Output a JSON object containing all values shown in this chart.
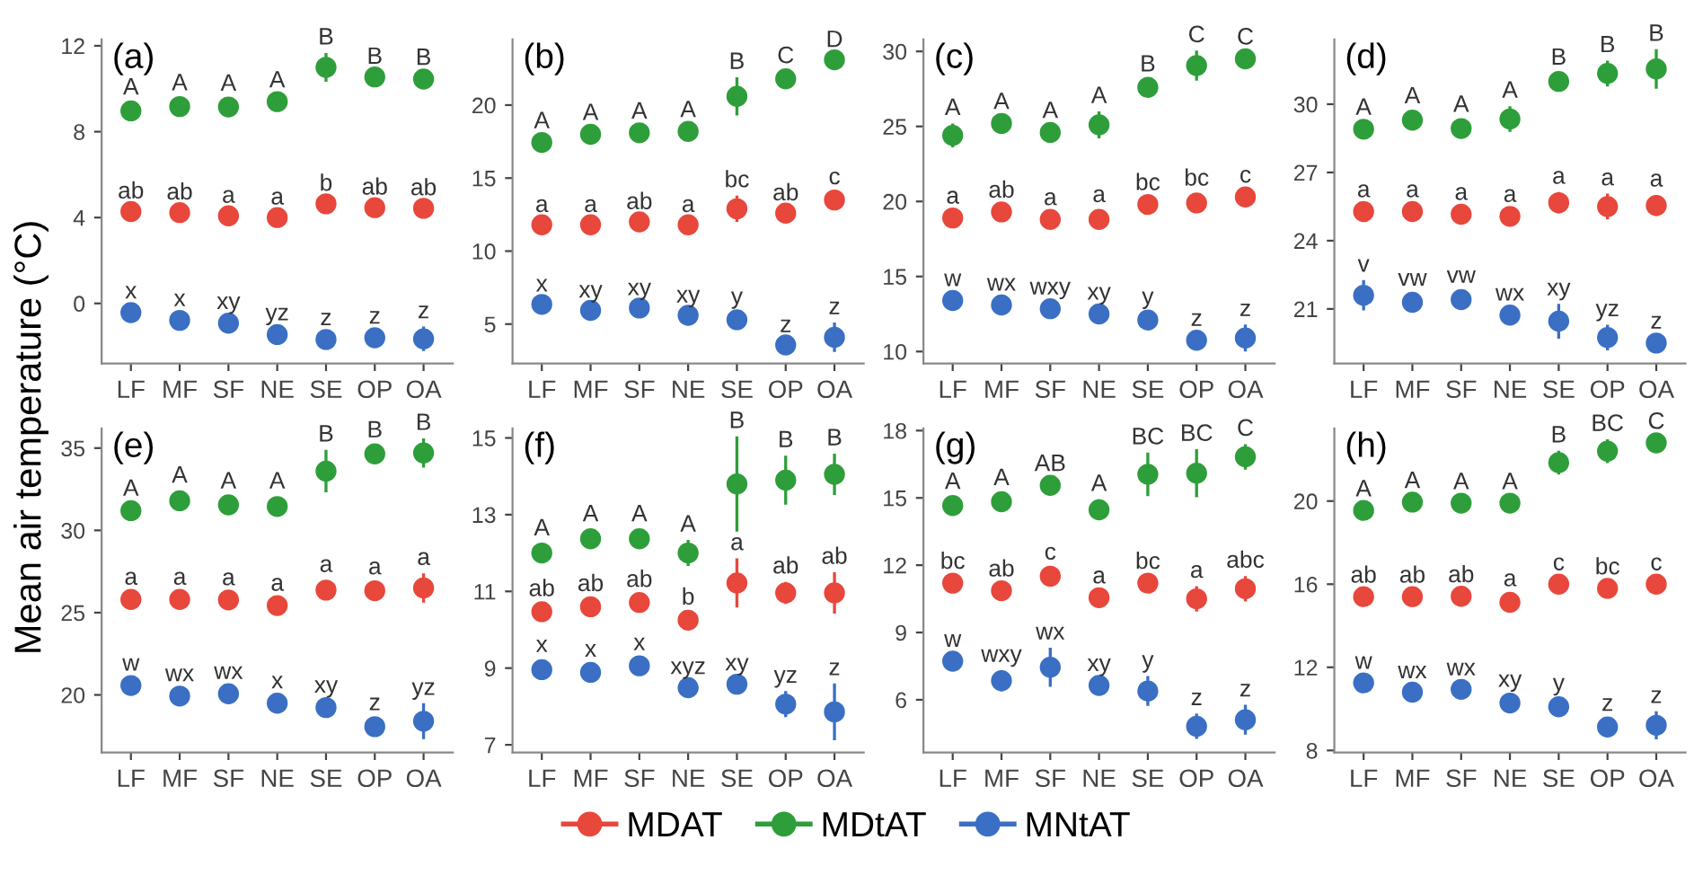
{
  "chart_data": [
    {
      "type": "scatter",
      "title": "(a)",
      "ylabel": "Mean air temperature (°C)",
      "legend": "bottom",
      "marker": "circle",
      "grid": false,
      "categories": [
        "LF",
        "MF",
        "SF",
        "NE",
        "SE",
        "OP",
        "OA"
      ],
      "ylim": [
        -2.8,
        12.3
      ],
      "yticks": [
        0,
        4,
        8,
        12
      ],
      "series": [
        {
          "name": "MDAT",
          "color": "#e8473c",
          "values": [
            4.28,
            4.23,
            4.08,
            4.0,
            4.64,
            4.46,
            4.43
          ],
          "errors": [
            0.15,
            0.15,
            0.15,
            0.15,
            0.15,
            0.15,
            0.15
          ],
          "value_labels": [
            "ab",
            "ab",
            "a",
            "a",
            "b",
            "ab",
            "ab"
          ]
        },
        {
          "name": "MDtAT",
          "color": "#2e9e3a",
          "values": [
            8.97,
            9.17,
            9.15,
            9.4,
            11.0,
            10.55,
            10.45
          ],
          "errors": [
            0.3,
            0.3,
            0.3,
            0.2,
            0.6,
            0.15,
            0.2
          ],
          "value_labels": [
            "A",
            "A",
            "A",
            "A",
            "B",
            "B",
            "B"
          ]
        },
        {
          "name": "MNtAT",
          "color": "#3a6fc4",
          "values": [
            -0.43,
            -0.79,
            -0.92,
            -1.45,
            -1.68,
            -1.6,
            -1.65
          ],
          "errors": [
            0.2,
            0.2,
            0.2,
            0.2,
            0.2,
            0.2,
            0.5
          ],
          "value_labels": [
            "x",
            "x",
            "xy",
            "yz",
            "z",
            "z",
            "z"
          ]
        }
      ]
    },
    {
      "type": "scatter",
      "title": "(b)",
      "marker": "circle",
      "grid": false,
      "categories": [
        "LF",
        "MF",
        "SF",
        "NE",
        "SE",
        "OP",
        "OA"
      ],
      "ylim": [
        2.3,
        24.5
      ],
      "yticks": [
        5,
        10,
        15,
        20
      ],
      "series": [
        {
          "color": "#e8473c",
          "values": [
            11.8,
            11.8,
            12.0,
            11.8,
            12.9,
            12.6,
            13.5
          ],
          "errors": [
            0.2,
            0.2,
            0.2,
            0.2,
            0.8,
            0.2,
            0.4
          ],
          "value_labels": [
            "a",
            "a",
            "ab",
            "a",
            "bc",
            "ab",
            "c"
          ]
        },
        {
          "color": "#2e9e3a",
          "values": [
            17.44,
            18.0,
            18.1,
            18.2,
            20.6,
            21.8,
            23.1
          ],
          "errors": [
            0.3,
            0.3,
            0.3,
            0.3,
            1.2,
            0.4,
            0.2
          ],
          "value_labels": [
            "A",
            "A",
            "A",
            "A",
            "B",
            "C",
            "D"
          ]
        },
        {
          "color": "#3a6fc4",
          "values": [
            6.35,
            5.94,
            6.1,
            5.6,
            5.3,
            3.57,
            4.1
          ],
          "errors": [
            0.2,
            0.2,
            0.2,
            0.2,
            0.4,
            0.2,
            0.9
          ],
          "value_labels": [
            "x",
            "xy",
            "xy",
            "xy",
            "y",
            "z",
            "z"
          ]
        }
      ]
    },
    {
      "type": "scatter",
      "title": "(c)",
      "marker": "circle",
      "grid": false,
      "categories": [
        "LF",
        "MF",
        "SF",
        "NE",
        "SE",
        "OP",
        "OA"
      ],
      "ylim": [
        9.2,
        30.8
      ],
      "yticks": [
        10,
        15,
        20,
        25,
        30
      ],
      "series": [
        {
          "color": "#e8473c",
          "values": [
            18.9,
            19.3,
            18.8,
            18.8,
            19.8,
            19.9,
            20.3
          ],
          "errors": [
            0.3,
            0.3,
            0.3,
            0.5,
            0.3,
            0.5,
            0.3
          ],
          "value_labels": [
            "a",
            "ab",
            "a",
            "a",
            "bc",
            "bc",
            "c"
          ]
        },
        {
          "color": "#2e9e3a",
          "values": [
            24.4,
            25.2,
            24.6,
            25.1,
            27.6,
            29.05,
            29.5
          ],
          "errors": [
            0.7,
            0.3,
            0.3,
            0.8,
            0.4,
            0.9,
            0.3
          ],
          "value_labels": [
            "A",
            "A",
            "A",
            "A",
            "B",
            "C",
            "C"
          ]
        },
        {
          "color": "#3a6fc4",
          "values": [
            13.4,
            13.1,
            12.85,
            12.5,
            12.1,
            10.75,
            10.9
          ],
          "errors": [
            0.3,
            0.3,
            0.3,
            0.3,
            0.4,
            0.3,
            0.8
          ],
          "value_labels": [
            "w",
            "wx",
            "wxy",
            "xy",
            "y",
            "z",
            "z"
          ]
        }
      ]
    },
    {
      "type": "scatter",
      "title": "(d)",
      "marker": "circle",
      "grid": false,
      "categories": [
        "LF",
        "MF",
        "SF",
        "NE",
        "SE",
        "OP",
        "OA"
      ],
      "ylim": [
        18.6,
        32.85
      ],
      "yticks": [
        21,
        24,
        27,
        30
      ],
      "series": [
        {
          "color": "#e8473c",
          "values": [
            25.28,
            25.28,
            25.16,
            25.07,
            25.67,
            25.5,
            25.55
          ],
          "errors": [
            0.2,
            0.2,
            0.2,
            0.2,
            0.4,
            0.5,
            0.4
          ],
          "value_labels": [
            "a",
            "a",
            "a",
            "a",
            "a",
            "a",
            "a"
          ]
        },
        {
          "color": "#2e9e3a",
          "values": [
            28.9,
            29.3,
            28.93,
            29.35,
            31.0,
            31.35,
            31.55
          ],
          "errors": [
            0.2,
            0.3,
            0.3,
            0.5,
            0.3,
            0.5,
            0.8
          ],
          "value_labels": [
            "A",
            "A",
            "A",
            "A",
            "B",
            "B",
            "B"
          ]
        },
        {
          "color": "#3a6fc4",
          "values": [
            21.6,
            21.29,
            21.41,
            20.73,
            20.46,
            19.74,
            19.5
          ],
          "errors": [
            0.6,
            0.3,
            0.3,
            0.2,
            0.7,
            0.5,
            0.2
          ],
          "value_labels": [
            "v",
            "vw",
            "vw",
            "wx",
            "xy",
            "yz",
            "z"
          ]
        }
      ]
    },
    {
      "type": "scatter",
      "title": "(e)",
      "marker": "circle",
      "grid": false,
      "categories": [
        "LF",
        "MF",
        "SF",
        "NE",
        "SE",
        "OP",
        "OA"
      ],
      "ylim": [
        16.5,
        36.2
      ],
      "yticks": [
        20,
        25,
        30,
        35
      ],
      "series": [
        {
          "color": "#e8473c",
          "values": [
            25.8,
            25.8,
            25.77,
            25.43,
            26.37,
            26.33,
            26.5
          ],
          "errors": [
            0.3,
            0.3,
            0.3,
            0.3,
            0.5,
            0.4,
            0.8
          ],
          "value_labels": [
            "a",
            "a",
            "a",
            "a",
            "a",
            "a",
            "a"
          ]
        },
        {
          "color": "#2e9e3a",
          "values": [
            31.2,
            31.8,
            31.55,
            31.45,
            33.6,
            34.65,
            34.7
          ],
          "errors": [
            0.3,
            0.5,
            0.4,
            0.5,
            1.2,
            0.4,
            0.8
          ],
          "value_labels": [
            "A",
            "A",
            "A",
            "A",
            "B",
            "B",
            "B"
          ]
        },
        {
          "color": "#3a6fc4",
          "values": [
            20.57,
            19.93,
            20.07,
            19.5,
            19.23,
            18.07,
            18.4
          ],
          "errors": [
            0.3,
            0.3,
            0.3,
            0.3,
            0.3,
            0.4,
            1.0
          ],
          "value_labels": [
            "w",
            "wx",
            "wx",
            "x",
            "xy",
            "z",
            "yz"
          ]
        }
      ]
    },
    {
      "type": "scatter",
      "title": "(f)",
      "marker": "circle",
      "grid": false,
      "categories": [
        "LF",
        "MF",
        "SF",
        "NE",
        "SE",
        "OP",
        "OA"
      ],
      "ylim": [
        6.8,
        15.25
      ],
      "yticks": [
        7,
        9,
        11,
        13,
        15
      ],
      "series": [
        {
          "color": "#e8473c",
          "values": [
            10.47,
            10.6,
            10.71,
            10.25,
            11.22,
            10.96,
            10.96
          ],
          "errors": [
            0.15,
            0.15,
            0.15,
            0.15,
            0.6,
            0.25,
            0.5
          ],
          "value_labels": [
            "ab",
            "ab",
            "ab",
            "b",
            "a",
            "ab",
            "ab"
          ]
        },
        {
          "color": "#2e9e3a",
          "values": [
            12.0,
            12.37,
            12.37,
            12.0,
            13.8,
            13.9,
            14.05
          ],
          "errors": [
            0.2,
            0.2,
            0.2,
            0.3,
            1.2,
            0.6,
            0.5
          ],
          "value_labels": [
            "A",
            "A",
            "A",
            "A",
            "B",
            "B",
            "B"
          ]
        },
        {
          "color": "#3a6fc4",
          "values": [
            8.96,
            8.89,
            9.06,
            8.49,
            8.58,
            8.06,
            7.86
          ],
          "errors": [
            0.2,
            0.15,
            0.15,
            0.1,
            0.1,
            0.3,
            0.7
          ],
          "value_labels": [
            "x",
            "x",
            "x",
            "xyz",
            "xy",
            "yz",
            "z"
          ]
        }
      ]
    },
    {
      "type": "scatter",
      "title": "(g)",
      "marker": "circle",
      "grid": false,
      "categories": [
        "LF",
        "MF",
        "SF",
        "NE",
        "SE",
        "OP",
        "OA"
      ],
      "ylim": [
        3.65,
        18.1
      ],
      "yticks": [
        6,
        9,
        12,
        15,
        18
      ],
      "series": [
        {
          "color": "#e8473c",
          "values": [
            11.2,
            10.86,
            11.51,
            10.55,
            11.2,
            10.5,
            10.95
          ],
          "errors": [
            0.2,
            0.2,
            0.3,
            0.2,
            0.2,
            0.5,
            0.5
          ],
          "value_labels": [
            "bc",
            "ab",
            "c",
            "a",
            "bc",
            "a",
            "abc"
          ]
        },
        {
          "color": "#2e9e3a",
          "values": [
            14.66,
            14.83,
            15.56,
            14.47,
            16.05,
            16.1,
            16.83
          ],
          "errors": [
            0.3,
            0.3,
            0.2,
            0.4,
            0.9,
            1.0,
            0.5
          ],
          "value_labels": [
            "A",
            "A",
            "AB",
            "A",
            "BC",
            "BC",
            "C"
          ]
        },
        {
          "color": "#3a6fc4",
          "values": [
            7.72,
            6.85,
            7.45,
            6.64,
            6.39,
            4.82,
            5.11
          ],
          "errors": [
            0.2,
            0.4,
            0.8,
            0.2,
            0.6,
            0.5,
            0.6
          ],
          "value_labels": [
            "w",
            "wxy",
            "wx",
            "xy",
            "y",
            "z",
            "z"
          ]
        }
      ]
    },
    {
      "type": "scatter",
      "title": "(h)",
      "marker": "circle",
      "grid": false,
      "categories": [
        "LF",
        "MF",
        "SF",
        "NE",
        "SE",
        "OP",
        "OA"
      ],
      "ylim": [
        7.9,
        23.5
      ],
      "yticks": [
        8,
        12,
        16,
        20
      ],
      "series": [
        {
          "color": "#e8473c",
          "values": [
            15.4,
            15.4,
            15.42,
            15.13,
            16.0,
            15.8,
            16.0
          ],
          "errors": [
            0.2,
            0.2,
            0.2,
            0.3,
            0.2,
            0.2,
            0.2
          ],
          "value_labels": [
            "ab",
            "ab",
            "ab",
            "a",
            "c",
            "bc",
            "c"
          ]
        },
        {
          "color": "#2e9e3a",
          "values": [
            19.55,
            19.95,
            19.9,
            19.9,
            21.85,
            22.4,
            22.8
          ],
          "errors": [
            0.2,
            0.2,
            0.2,
            0.2,
            0.5,
            0.5,
            0.2
          ],
          "value_labels": [
            "A",
            "A",
            "A",
            "A",
            "B",
            "BC",
            "C"
          ]
        },
        {
          "color": "#3a6fc4",
          "values": [
            11.25,
            10.8,
            10.94,
            10.28,
            10.1,
            9.13,
            9.21
          ],
          "errors": [
            0.2,
            0.2,
            0.2,
            0.3,
            0.3,
            0.3,
            0.6
          ],
          "value_labels": [
            "w",
            "wx",
            "wx",
            "xy",
            "y",
            "z",
            "z"
          ]
        }
      ]
    }
  ]
}
